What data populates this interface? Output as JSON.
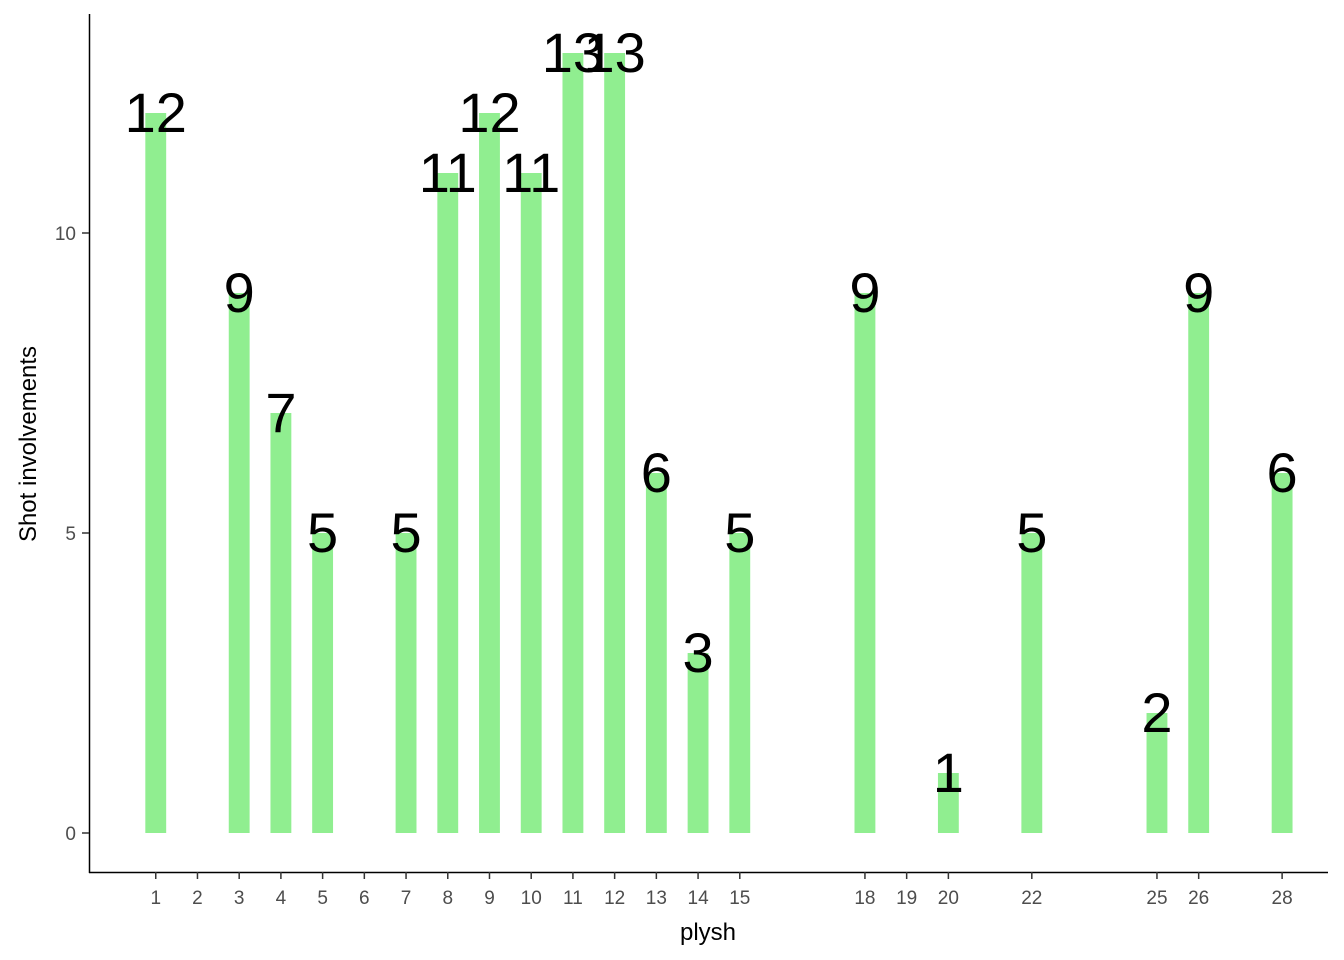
{
  "chart_data": {
    "type": "bar",
    "xlabel": "plysh",
    "ylabel": "Shot involvements",
    "x_ticks": [
      1,
      2,
      3,
      4,
      5,
      6,
      7,
      8,
      9,
      10,
      11,
      12,
      13,
      14,
      15,
      18,
      19,
      20,
      22,
      25,
      26,
      28
    ],
    "y_ticks": [
      0,
      5,
      10
    ],
    "xlim": [
      -0.6,
      29.1
    ],
    "ylim": [
      -0.65,
      13.65
    ],
    "bar_color": "#90EE90",
    "grid": false,
    "bars": [
      {
        "x": 1,
        "value": 12
      },
      {
        "x": 3,
        "value": 9
      },
      {
        "x": 4,
        "value": 7
      },
      {
        "x": 5,
        "value": 5
      },
      {
        "x": 7,
        "value": 5
      },
      {
        "x": 8,
        "value": 11
      },
      {
        "x": 9,
        "value": 12
      },
      {
        "x": 10,
        "value": 11
      },
      {
        "x": 11,
        "value": 13
      },
      {
        "x": 12,
        "value": 13
      },
      {
        "x": 13,
        "value": 6
      },
      {
        "x": 14,
        "value": 3
      },
      {
        "x": 15,
        "value": 5
      },
      {
        "x": 18,
        "value": 9
      },
      {
        "x": 20,
        "value": 1
      },
      {
        "x": 22,
        "value": 5
      },
      {
        "x": 25,
        "value": 2
      },
      {
        "x": 26,
        "value": 9
      },
      {
        "x": 28,
        "value": 6
      }
    ]
  }
}
